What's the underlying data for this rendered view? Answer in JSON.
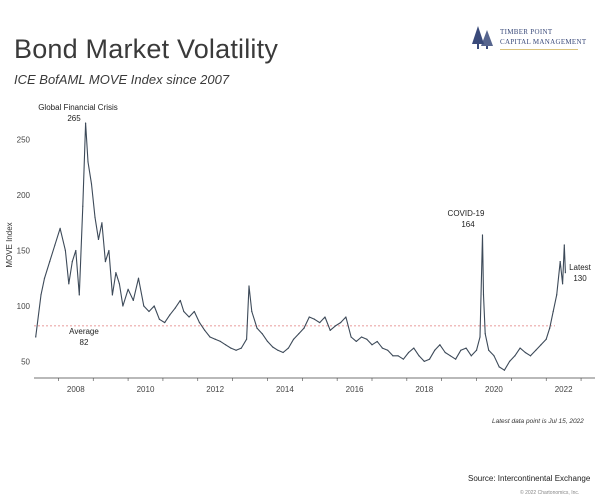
{
  "header": {
    "title": "Bond Market Volatility",
    "subtitle": "ICE BofAML MOVE Index since 2007"
  },
  "logo": {
    "line1": "TIMBER POINT",
    "line2": "CAPITAL MANAGEMENT",
    "color": "#3a4a7a"
  },
  "footer": {
    "source": "Source: Intercontinental Exchange",
    "copyright": "© 2022 Chartonomics, Inc.",
    "note": "Latest data point is Jul 15, 2022"
  },
  "chart_data": {
    "type": "line",
    "ylabel": "MOVE Index",
    "xlabel": "",
    "ylim": [
      35,
      275
    ],
    "xlim": [
      2007.3,
      2023.4
    ],
    "yticks": [
      50,
      100,
      150,
      200,
      250
    ],
    "xticks": [
      "2008",
      "2010",
      "2012",
      "2014",
      "2016",
      "2018",
      "2020",
      "2022"
    ],
    "line_color": "#3d4a59",
    "average_color": "#e07a7a",
    "average_value": 82,
    "series": [
      {
        "x": [
          2007.35,
          2007.5,
          2007.6,
          2007.75,
          2007.9,
          2008.05,
          2008.2,
          2008.3,
          2008.4,
          2008.5,
          2008.6,
          2008.7,
          2008.78,
          2008.85,
          2008.95,
          2009.05,
          2009.15,
          2009.25,
          2009.35,
          2009.45,
          2009.55,
          2009.65,
          2009.75,
          2009.85,
          2010.0,
          2010.15,
          2010.3,
          2010.45,
          2010.6,
          2010.75,
          2010.9,
          2011.05,
          2011.2,
          2011.35,
          2011.5,
          2011.6,
          2011.75,
          2011.9,
          2012.05,
          2012.2,
          2012.35,
          2012.5,
          2012.65,
          2012.8,
          2012.95,
          2013.1,
          2013.25,
          2013.4,
          2013.47,
          2013.55,
          2013.7,
          2013.85,
          2014.0,
          2014.15,
          2014.3,
          2014.45,
          2014.6,
          2014.75,
          2014.9,
          2015.05,
          2015.2,
          2015.35,
          2015.5,
          2015.65,
          2015.8,
          2015.95,
          2016.1,
          2016.25,
          2016.4,
          2016.55,
          2016.7,
          2016.85,
          2017.0,
          2017.15,
          2017.3,
          2017.45,
          2017.6,
          2017.75,
          2017.9,
          2018.05,
          2018.2,
          2018.35,
          2018.5,
          2018.65,
          2018.8,
          2018.95,
          2019.1,
          2019.25,
          2019.4,
          2019.55,
          2019.7,
          2019.85,
          2020.0,
          2020.1,
          2020.17,
          2020.2,
          2020.25,
          2020.35,
          2020.5,
          2020.65,
          2020.8,
          2020.95,
          2021.1,
          2021.25,
          2021.4,
          2021.55,
          2021.7,
          2021.85,
          2022.0,
          2022.1,
          2022.2,
          2022.3,
          2022.4,
          2022.47,
          2022.52,
          2022.55
        ],
        "values": [
          72,
          110,
          125,
          140,
          155,
          170,
          150,
          120,
          140,
          150,
          110,
          190,
          265,
          230,
          210,
          180,
          160,
          175,
          140,
          150,
          110,
          130,
          120,
          100,
          115,
          105,
          125,
          100,
          95,
          100,
          88,
          85,
          92,
          98,
          105,
          95,
          90,
          95,
          85,
          78,
          72,
          70,
          68,
          65,
          62,
          60,
          62,
          70,
          118,
          95,
          80,
          75,
          68,
          63,
          60,
          58,
          62,
          70,
          75,
          80,
          90,
          88,
          85,
          90,
          78,
          82,
          85,
          90,
          72,
          68,
          72,
          70,
          65,
          68,
          62,
          60,
          55,
          55,
          52,
          58,
          62,
          55,
          50,
          52,
          60,
          65,
          58,
          55,
          52,
          60,
          62,
          55,
          60,
          72,
          164,
          110,
          75,
          60,
          55,
          45,
          42,
          50,
          55,
          62,
          58,
          55,
          60,
          65,
          70,
          80,
          95,
          110,
          140,
          120,
          155,
          130
        ]
      }
    ],
    "annotations": [
      {
        "label": "Global Financial Crisis",
        "value_text": "265"
      },
      {
        "label": "COVID-19",
        "value_text": "164"
      },
      {
        "label": "Latest",
        "value_text": "130"
      },
      {
        "label": "Average",
        "value_text": "82"
      }
    ]
  }
}
